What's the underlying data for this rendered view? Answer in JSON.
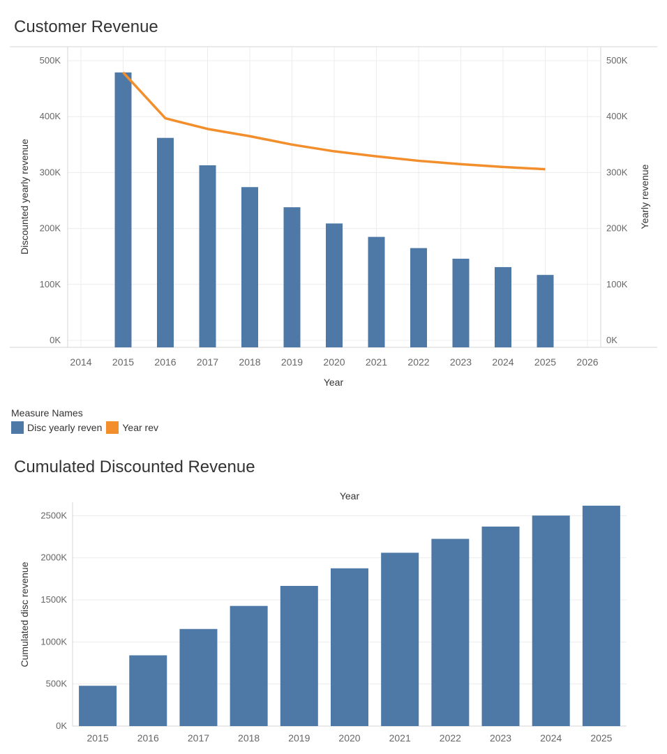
{
  "colors": {
    "bar": "#4e79a7",
    "line": "#f28e2b",
    "grid": "#ececec",
    "axis": "#d4d4d4",
    "tick": "#666666"
  },
  "chart_data": [
    {
      "type": "bar",
      "title": "Customer Revenue",
      "xlabel": "Year",
      "ylabel": "Discounted yearly revenue",
      "ylabel_right": "Yearly revenue",
      "x_ticks": [
        "2014",
        "2015",
        "2016",
        "2017",
        "2018",
        "2019",
        "2020",
        "2021",
        "2022",
        "2023",
        "2024",
        "2025",
        "2026"
      ],
      "y_ticks": [
        "0K",
        "100K",
        "200K",
        "300K",
        "400K",
        "500K"
      ],
      "y_ticks_right": [
        "0K",
        "100K",
        "200K",
        "300K",
        "400K",
        "500K"
      ],
      "xlim": [
        2014,
        2026
      ],
      "ylim": [
        0,
        500000
      ],
      "grid": true,
      "legend": {
        "title": "Measure Names",
        "position": "bottom-left",
        "items": [
          {
            "label": "Disc yearly reven",
            "color": "#4e79a7"
          },
          {
            "label": "Year rev",
            "color": "#f28e2b"
          }
        ]
      },
      "categories": [
        2015,
        2016,
        2017,
        2018,
        2019,
        2020,
        2021,
        2022,
        2023,
        2024,
        2025
      ],
      "series": [
        {
          "name": "Disc yearly reven",
          "type": "bar",
          "axis": "left",
          "values": [
            479000,
            362000,
            313000,
            274000,
            238000,
            209000,
            185000,
            165000,
            146000,
            131000,
            117000
          ]
        },
        {
          "name": "Year rev",
          "type": "line",
          "axis": "right",
          "values": [
            479000,
            397000,
            378000,
            365000,
            350000,
            338000,
            329000,
            321000,
            315000,
            310000,
            306000
          ]
        }
      ]
    },
    {
      "type": "bar",
      "title": "Cumulated Discounted Revenue",
      "xlabel": "Year",
      "xlabel_position": "top",
      "ylabel": "Cumulated disc revenue",
      "y_ticks": [
        "0K",
        "500K",
        "1000K",
        "1500K",
        "2000K",
        "2500K"
      ],
      "ylim": [
        0,
        2760000
      ],
      "grid": true,
      "categories": [
        "2015",
        "2016",
        "2017",
        "2018",
        "2019",
        "2020",
        "2021",
        "2022",
        "2023",
        "2024",
        "2025"
      ],
      "values": [
        479000,
        841000,
        1154000,
        1428000,
        1666000,
        1875000,
        2060000,
        2225000,
        2371000,
        2502000,
        2619000
      ]
    }
  ]
}
